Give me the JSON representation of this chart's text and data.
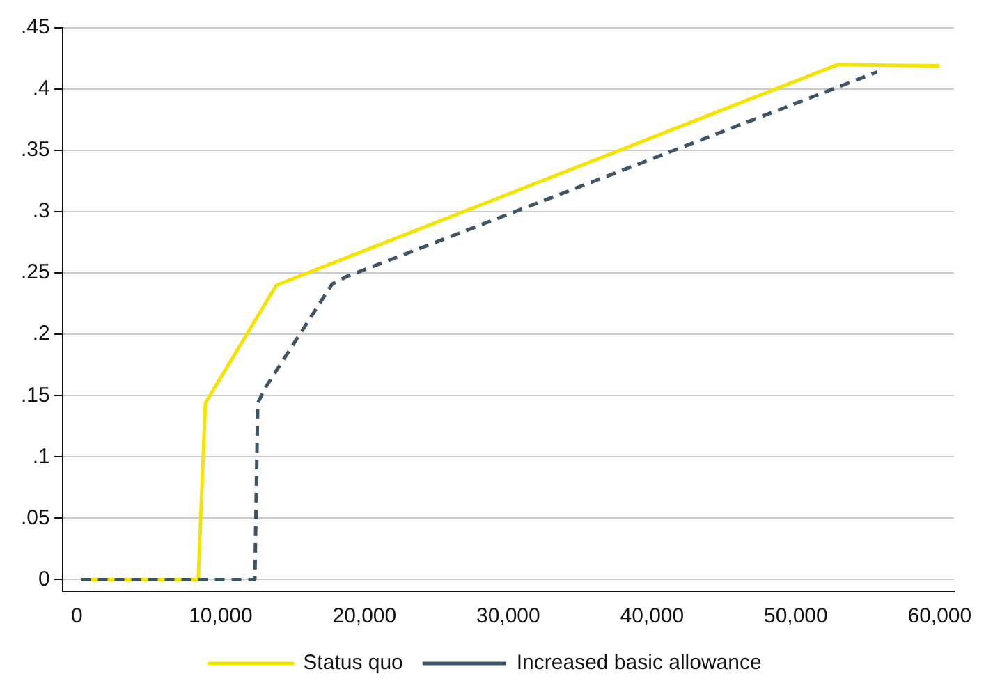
{
  "chart_data": {
    "type": "line",
    "xlim": [
      -1000,
      61000
    ],
    "ylim": [
      -0.01,
      0.45
    ],
    "xticks": [
      {
        "value": 0,
        "label": "0"
      },
      {
        "value": 10000,
        "label": "10,000"
      },
      {
        "value": 20000,
        "label": "20,000"
      },
      {
        "value": 30000,
        "label": "30,000"
      },
      {
        "value": 40000,
        "label": "40,000"
      },
      {
        "value": 50000,
        "label": "50,000"
      },
      {
        "value": 60000,
        "label": "60,000"
      }
    ],
    "yticks": [
      {
        "value": 0,
        "label": "0"
      },
      {
        "value": 0.05,
        "label": ".05"
      },
      {
        "value": 0.1,
        "label": ".1"
      },
      {
        "value": 0.15,
        "label": ".15"
      },
      {
        "value": 0.2,
        "label": ".2"
      },
      {
        "value": 0.25,
        "label": ".25"
      },
      {
        "value": 0.3,
        "label": ".3"
      },
      {
        "value": 0.35,
        "label": ".35"
      },
      {
        "value": 0.4,
        "label": ".4"
      },
      {
        "value": 0.45,
        "label": ".45"
      }
    ],
    "grid": "y",
    "legend": "bottom",
    "marker": "none",
    "series": [
      {
        "name": "Status quo",
        "color": "#f5e400",
        "line_style": "solid",
        "x": [
          300,
          8440,
          8940,
          13870,
          52900,
          60000
        ],
        "values": [
          0,
          0,
          0.144,
          0.24,
          0.42,
          0.419
        ]
      },
      {
        "name": "Increased basic allowance",
        "color": "#3f5464",
        "line_style": "dashed",
        "x": [
          300,
          12380,
          12580,
          13140,
          17750,
          18740,
          55650
        ],
        "values": [
          0,
          0,
          0.144,
          0.157,
          0.241,
          0.247,
          0.414
        ]
      }
    ]
  }
}
